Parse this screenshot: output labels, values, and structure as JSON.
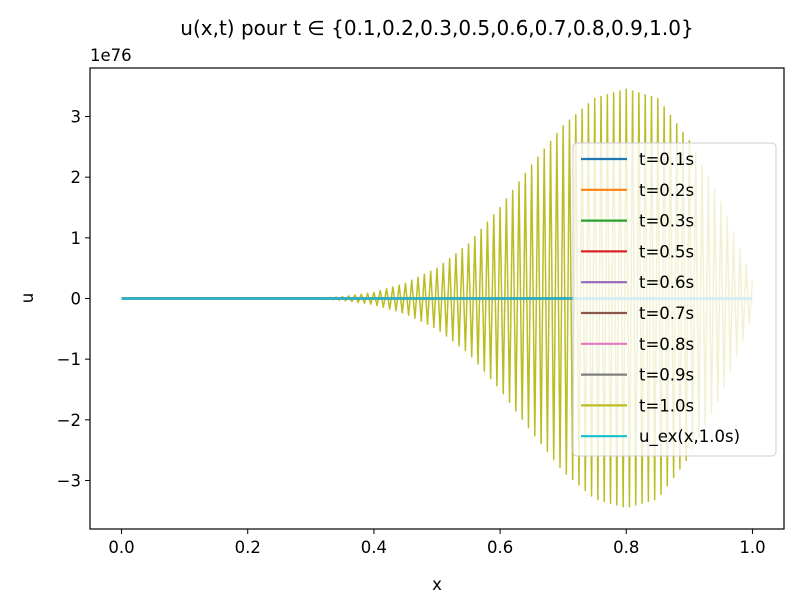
{
  "chart_data": {
    "type": "line",
    "title": "u(x,t) pour t ∈ {0.1,0.2,0.3,0.5,0.6,0.7,0.8,0.9,1.0}",
    "xlabel": "x",
    "ylabel": "u",
    "y_offset_label": "1e76",
    "xlim": [
      -0.05,
      1.05
    ],
    "ylim": [
      -3.8,
      3.8
    ],
    "xticks": [
      0.0,
      0.2,
      0.4,
      0.6,
      0.8,
      1.0
    ],
    "xtick_labels": [
      "0.0",
      "0.2",
      "0.4",
      "0.6",
      "0.8",
      "1.0"
    ],
    "yticks": [
      -3,
      -2,
      -1,
      0,
      1,
      2,
      3
    ],
    "ytick_labels": [
      "−3",
      "−2",
      "−1",
      "0",
      "1",
      "2",
      "3"
    ],
    "y_scale_factor": "1e76",
    "grid": false,
    "legend_position": "center-right",
    "series": [
      {
        "name": "t=0.1s",
        "color": "#1f77b4",
        "shape": "flat",
        "x": [
          0.0,
          1.0
        ],
        "y": [
          0,
          0
        ]
      },
      {
        "name": "t=0.2s",
        "color": "#ff7f0e",
        "shape": "flat",
        "x": [
          0.0,
          1.0
        ],
        "y": [
          0,
          0
        ]
      },
      {
        "name": "t=0.3s",
        "color": "#2ca02c",
        "shape": "flat",
        "x": [
          0.0,
          1.0
        ],
        "y": [
          0,
          0
        ]
      },
      {
        "name": "t=0.5s",
        "color": "#d62728",
        "shape": "flat",
        "x": [
          0.0,
          1.0
        ],
        "y": [
          0,
          0
        ]
      },
      {
        "name": "t=0.6s",
        "color": "#9467bd",
        "shape": "flat",
        "x": [
          0.0,
          1.0
        ],
        "y": [
          0,
          0
        ]
      },
      {
        "name": "t=0.7s",
        "color": "#8c564b",
        "shape": "flat",
        "x": [
          0.0,
          1.0
        ],
        "y": [
          0,
          0
        ]
      },
      {
        "name": "t=0.8s",
        "color": "#e377c2",
        "shape": "flat",
        "x": [
          0.0,
          1.0
        ],
        "y": [
          0,
          0
        ]
      },
      {
        "name": "t=0.9s",
        "color": "#7f7f7f",
        "shape": "flat",
        "x": [
          0.0,
          1.0
        ],
        "y": [
          0,
          0
        ]
      },
      {
        "name": "t=1.0s",
        "color": "#bcbd22",
        "shape": "oscillating",
        "x_range": [
          0.0,
          1.0
        ],
        "oscillation_period": 0.01,
        "envelope": {
          "x": [
            0.0,
            0.3,
            0.35,
            0.4,
            0.45,
            0.5,
            0.55,
            0.6,
            0.65,
            0.7,
            0.75,
            0.8,
            0.85,
            0.9,
            0.95,
            1.0
          ],
          "y": [
            0.0,
            0.0,
            0.03,
            0.1,
            0.25,
            0.5,
            0.9,
            1.5,
            2.2,
            2.85,
            3.3,
            3.45,
            3.3,
            2.6,
            1.6,
            0.3
          ]
        }
      },
      {
        "name": "u_ex(x,1.0s)",
        "color": "#17becf",
        "shape": "flat",
        "x": [
          0.0,
          1.0
        ],
        "y": [
          0,
          0
        ]
      }
    ]
  }
}
